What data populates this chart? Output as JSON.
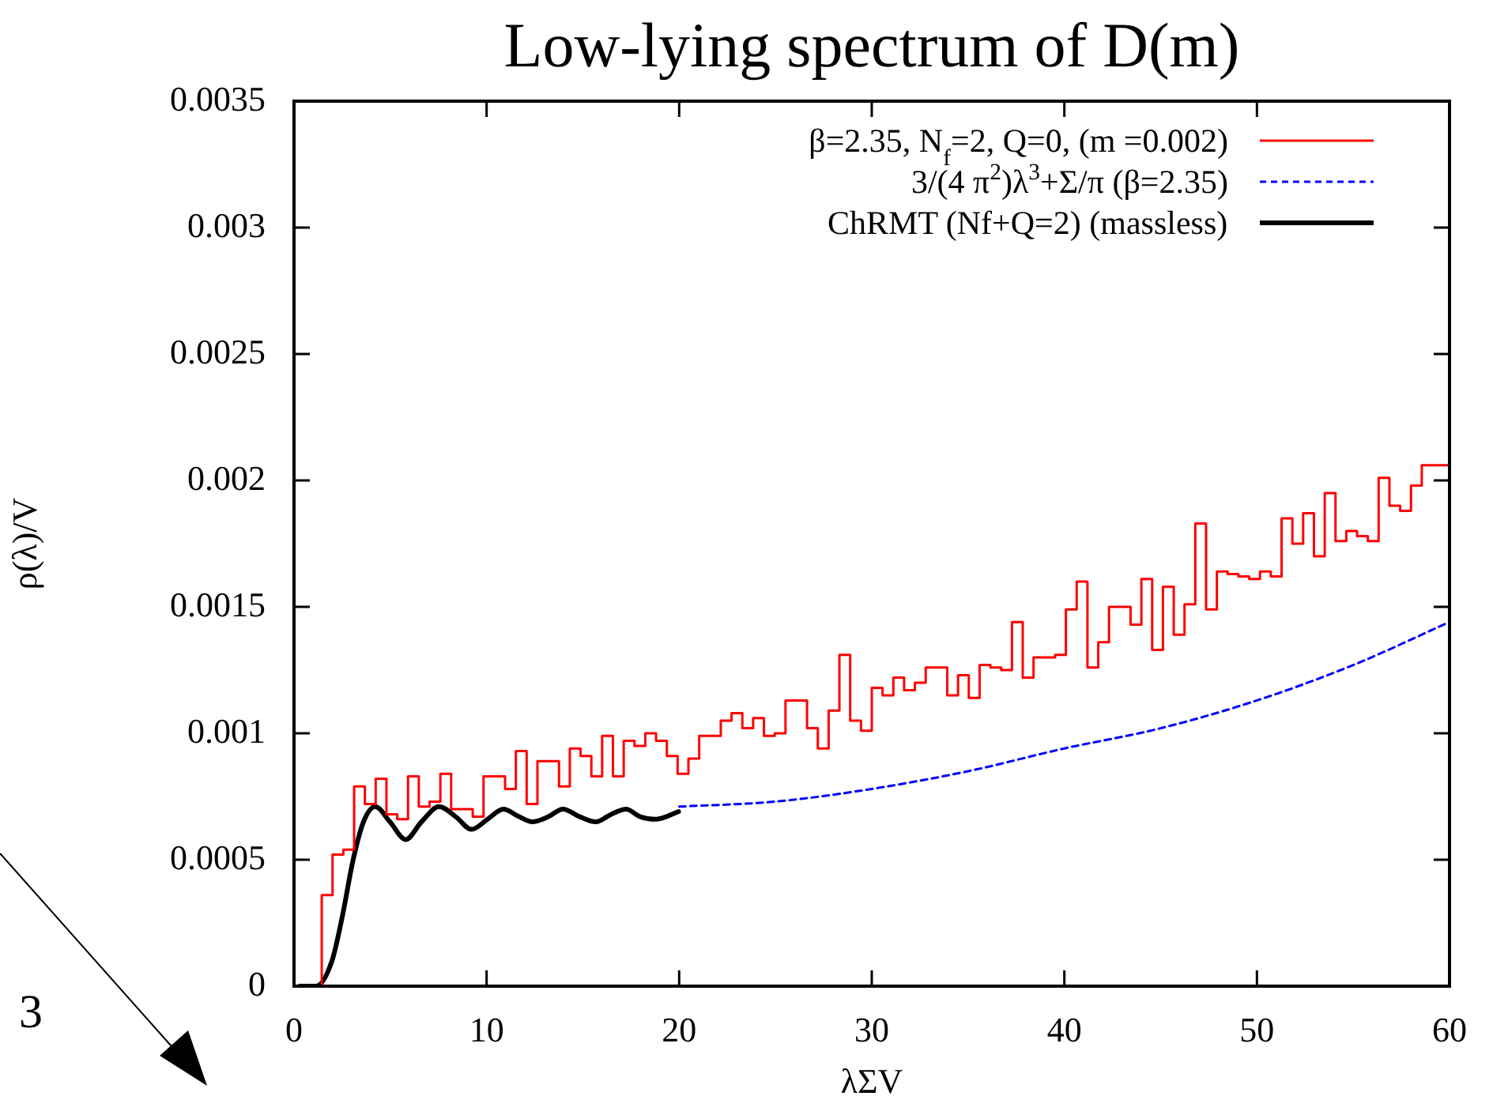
{
  "chart_data": {
    "type": "line",
    "title": "Low-lying spectrum of D(m)",
    "xlabel": "λΣV",
    "ylabel": "ρ(λ)/V",
    "xlim": [
      0,
      60
    ],
    "xticks": [
      0,
      10,
      20,
      30,
      40,
      50,
      60
    ],
    "ylim": [
      0,
      0.0035
    ],
    "yticks": [
      0,
      0.0005,
      0.001,
      0.0015,
      0.002,
      0.0025,
      0.003,
      0.0035
    ],
    "grid": false,
    "legend": "top right",
    "annotations": [
      "3"
    ],
    "series": [
      {
        "type": "step",
        "name": "β=2.35, N$_{f}$=2, Q=0, (m =0.002)",
        "color": "#ff0000",
        "x": [
          1.44,
          2.0,
          2.56,
          3.12,
          3.68,
          4.24,
          4.8,
          5.36,
          5.92,
          6.48,
          7.04,
          7.6,
          8.16,
          8.72,
          9.28,
          9.84,
          10.4,
          10.96,
          11.52,
          12.08,
          12.64,
          13.2,
          13.76,
          14.32,
          14.88,
          15.44,
          16.0,
          16.56,
          17.12,
          17.68,
          18.24,
          18.8,
          19.36,
          19.92,
          20.48,
          21.04,
          21.6,
          22.16,
          22.72,
          23.28,
          23.84,
          24.4,
          24.96,
          25.52,
          26.08,
          26.64,
          27.2,
          27.76,
          28.32,
          28.88,
          29.44,
          30.0,
          30.56,
          31.12,
          31.68,
          32.24,
          32.8,
          33.36,
          33.92,
          34.48,
          35.04,
          35.6,
          36.16,
          36.72,
          37.28,
          37.84,
          38.4,
          38.96,
          39.52,
          40.08,
          40.64,
          41.2,
          41.76,
          42.32,
          42.88,
          43.44,
          44.0,
          44.56,
          45.12,
          45.68,
          46.24,
          46.8,
          47.36,
          47.92,
          48.48,
          49.04,
          49.6,
          50.16,
          50.72,
          51.28,
          51.84,
          52.4,
          52.96,
          53.52,
          54.08,
          54.64,
          55.2,
          55.76,
          56.32,
          56.88,
          57.44,
          58.0,
          58.56,
          59.12,
          60
        ],
        "values": [
          0,
          0.00036,
          0.00052,
          0.00054,
          0.00079,
          0.00072,
          0.00082,
          0.00068,
          0.00066,
          0.00083,
          0.00071,
          0.00073,
          0.00084,
          0.0007,
          0.0007,
          0.00067,
          0.00083,
          0.00083,
          0.00078,
          0.00093,
          0.00072,
          0.00089,
          0.00089,
          0.00079,
          0.00094,
          0.00091,
          0.00083,
          0.00099,
          0.00083,
          0.00097,
          0.00095,
          0.001,
          0.00097,
          0.00091,
          0.00084,
          0.0009,
          0.00099,
          0.00099,
          0.00105,
          0.00108,
          0.00102,
          0.00106,
          0.00099,
          0.001,
          0.00113,
          0.00113,
          0.00102,
          0.00094,
          0.00109,
          0.00131,
          0.00105,
          0.00101,
          0.00118,
          0.00115,
          0.00122,
          0.00117,
          0.0012,
          0.00126,
          0.00126,
          0.00115,
          0.00123,
          0.00114,
          0.00127,
          0.00126,
          0.00125,
          0.00144,
          0.00122,
          0.0013,
          0.0013,
          0.00131,
          0.00149,
          0.0016,
          0.00126,
          0.00136,
          0.0015,
          0.0015,
          0.00143,
          0.00161,
          0.00133,
          0.00158,
          0.00139,
          0.00151,
          0.00183,
          0.00149,
          0.00164,
          0.00163,
          0.00162,
          0.00161,
          0.00164,
          0.00162,
          0.00185,
          0.00175,
          0.00187,
          0.0017,
          0.00195,
          0.00176,
          0.0018,
          0.00178,
          0.00176,
          0.00201,
          0.0019,
          0.00188,
          0.00198,
          0.00206,
          0.00206
        ]
      },
      {
        "name": "3/(4 π$^{2}$)λ$^{3}$+Σ/π (β=2.35)",
        "color": "#0000ff",
        "line_style": "dashed",
        "x": [
          20,
          25,
          30,
          35,
          40,
          45,
          50,
          55,
          60
        ],
        "values": [
          0.00071,
          0.00073,
          0.00078,
          0.00085,
          0.00094,
          0.00102,
          0.00113,
          0.00127,
          0.00144
        ]
      },
      {
        "name": "ChRMT (Nf+Q=2) (massless)",
        "color": "#000000",
        "line_style": "solid",
        "x": [
          0.3,
          1.15,
          1.97,
          2.52,
          3.07,
          3.61,
          4.22,
          4.98,
          5.8,
          6.62,
          7.53,
          8.4,
          9.22,
          10.05,
          10.87,
          11.69,
          12.37,
          13.2,
          13.96,
          14.84,
          15.66,
          16.48,
          17.24,
          17.98,
          18.8,
          19.97
        ],
        "values": [
          0,
          0,
          0.0001,
          0.00028,
          0.0005,
          0.00065,
          0.00071,
          0.00065,
          0.00058,
          0.00065,
          0.00071,
          0.00067,
          0.00062,
          0.00066,
          0.0007,
          0.00067,
          0.00065,
          0.00067,
          0.0007,
          0.00067,
          0.00065,
          0.00068,
          0.0007,
          0.00067,
          0.00066,
          0.00069
        ]
      }
    ]
  }
}
